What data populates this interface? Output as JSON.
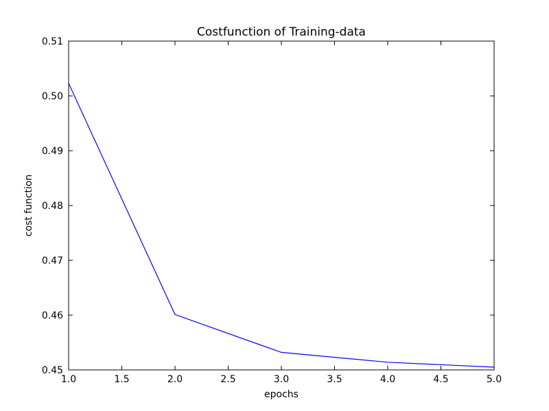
{
  "chart_data": {
    "type": "line",
    "title": "Costfunction of Training-data",
    "xlabel": "epochs",
    "ylabel": "cost function",
    "xlim": [
      1.0,
      5.0
    ],
    "ylim": [
      0.45,
      0.51
    ],
    "x_ticks": [
      "1.0",
      "1.5",
      "2.0",
      "2.5",
      "3.0",
      "3.5",
      "4.0",
      "4.5",
      "5.0"
    ],
    "y_ticks": [
      "0.45",
      "0.46",
      "0.47",
      "0.48",
      "0.49",
      "0.50",
      "0.51"
    ],
    "grid": false,
    "legend": "none",
    "series": [
      {
        "color": "#0000ff",
        "x": [
          1,
          2,
          3,
          4,
          5
        ],
        "y": [
          0.5023,
          0.4601,
          0.4532,
          0.4514,
          0.4505
        ]
      }
    ]
  }
}
